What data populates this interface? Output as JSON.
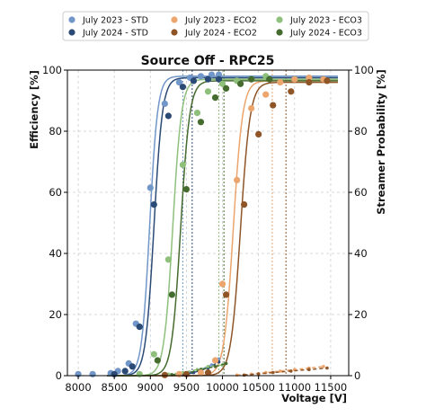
{
  "chart_data": {
    "type": "scatter",
    "title": "Source Off - RPC25",
    "xlabel": "Voltage [V]",
    "ylabel": "Efficiency [%]",
    "ylabel_right": "Streamer Probability [%]",
    "xlim": [
      7850,
      11750
    ],
    "ylim": [
      0,
      100
    ],
    "xticks": [
      8000,
      8500,
      9000,
      9500,
      10000,
      10500,
      11000,
      11500
    ],
    "yticks": [
      0,
      20,
      40,
      60,
      80,
      100
    ],
    "grid": true,
    "legend_position": "top",
    "series": [
      {
        "name": "July 2023 - STD",
        "color": "#7196c8",
        "points": [
          [
            8000,
            0.5
          ],
          [
            8200,
            0.5
          ],
          [
            8450,
            0.8
          ],
          [
            8550,
            1.5
          ],
          [
            8700,
            4
          ],
          [
            8800,
            17
          ],
          [
            9000,
            61.5
          ],
          [
            9200,
            89
          ],
          [
            9400,
            96
          ],
          [
            9550,
            97.5
          ],
          [
            9700,
            98
          ],
          [
            9850,
            98.5
          ],
          [
            9950,
            98.5
          ]
        ],
        "fit": {
          "max": 98,
          "v50": 8990,
          "k": 0.018
        },
        "wp_voltage": 9450,
        "streamer": [
          [
            9400,
            0.2
          ],
          [
            9550,
            1
          ],
          [
            9700,
            2
          ],
          [
            9850,
            3.5
          ],
          [
            9950,
            5.5
          ]
        ]
      },
      {
        "name": "July 2024 - STD",
        "color": "#2b4a75",
        "points": [
          [
            8500,
            0.5
          ],
          [
            8650,
            1.5
          ],
          [
            8750,
            3
          ],
          [
            8850,
            16
          ],
          [
            9050,
            56
          ],
          [
            9250,
            85
          ],
          [
            9450,
            94.5
          ],
          [
            9600,
            96.5
          ],
          [
            9800,
            97
          ],
          [
            9950,
            97
          ]
        ],
        "fit": {
          "max": 97.5,
          "v50": 9050,
          "k": 0.017
        },
        "wp_voltage": 9580,
        "streamer": [
          [
            9450,
            0.3
          ],
          [
            9600,
            1
          ],
          [
            9800,
            2.5
          ],
          [
            9950,
            4.5
          ]
        ]
      },
      {
        "name": "July 2023 - ECO2",
        "color": "#eba56d",
        "points": [
          [
            9400,
            0.5
          ],
          [
            9700,
            1
          ],
          [
            9900,
            5
          ],
          [
            10000,
            30
          ],
          [
            10200,
            64
          ],
          [
            10400,
            87.5
          ],
          [
            10600,
            92
          ],
          [
            10800,
            96
          ],
          [
            11000,
            97
          ],
          [
            11200,
            97.5
          ],
          [
            11400,
            97
          ]
        ],
        "fit": {
          "max": 96.5,
          "v50": 10150,
          "k": 0.0155
        },
        "wp_voltage": 10690,
        "streamer": [
          [
            10200,
            0.2
          ],
          [
            10400,
            0.5
          ],
          [
            10600,
            1
          ],
          [
            10800,
            1.5
          ],
          [
            11000,
            2
          ],
          [
            11200,
            2.5
          ],
          [
            11400,
            3
          ]
        ]
      },
      {
        "name": "July 2024 - ECO2",
        "color": "#8f5527",
        "points": [
          [
            9200,
            0.2
          ],
          [
            9500,
            0.5
          ],
          [
            9800,
            1
          ],
          [
            10050,
            26.5
          ],
          [
            10300,
            56
          ],
          [
            10500,
            79
          ],
          [
            10700,
            88.5
          ],
          [
            10950,
            93
          ],
          [
            11200,
            96
          ],
          [
            11450,
            96.5
          ]
        ],
        "fit": {
          "max": 96,
          "v50": 10250,
          "k": 0.015
        },
        "wp_voltage": 10880,
        "streamer": [
          [
            10300,
            0.2
          ],
          [
            10500,
            0.6
          ],
          [
            10700,
            1
          ],
          [
            10950,
            1.5
          ],
          [
            11200,
            2
          ],
          [
            11450,
            2.5
          ]
        ]
      },
      {
        "name": "July 2023 - ECO3",
        "color": "#8ec07c",
        "points": [
          [
            8850,
            0.5
          ],
          [
            9050,
            7
          ],
          [
            9250,
            38
          ],
          [
            9450,
            69
          ],
          [
            9650,
            86
          ],
          [
            9800,
            93
          ],
          [
            10000,
            95.5
          ],
          [
            10200,
            96.5
          ],
          [
            10400,
            97
          ],
          [
            10600,
            98
          ]
        ],
        "fit": {
          "max": 97,
          "v50": 9310,
          "k": 0.0165
        },
        "wp_voltage": 9950,
        "streamer": [
          [
            9250,
            0.5
          ],
          [
            9450,
            1
          ],
          [
            9650,
            2
          ],
          [
            9800,
            3
          ],
          [
            10000,
            3.5
          ]
        ]
      },
      {
        "name": "July 2024 - ECO3",
        "color": "#456b2e",
        "points": [
          [
            9100,
            5
          ],
          [
            9300,
            26.5
          ],
          [
            9500,
            61
          ],
          [
            9700,
            83
          ],
          [
            9900,
            91
          ],
          [
            10050,
            94
          ],
          [
            10250,
            95.5
          ],
          [
            10400,
            97
          ],
          [
            10650,
            97
          ]
        ],
        "fit": {
          "max": 96.5,
          "v50": 9420,
          "k": 0.016
        },
        "wp_voltage": 10020,
        "streamer": [
          [
            9300,
            0.3
          ],
          [
            9500,
            0.8
          ],
          [
            9700,
            2
          ],
          [
            9900,
            3
          ],
          [
            10050,
            4
          ]
        ]
      }
    ]
  }
}
